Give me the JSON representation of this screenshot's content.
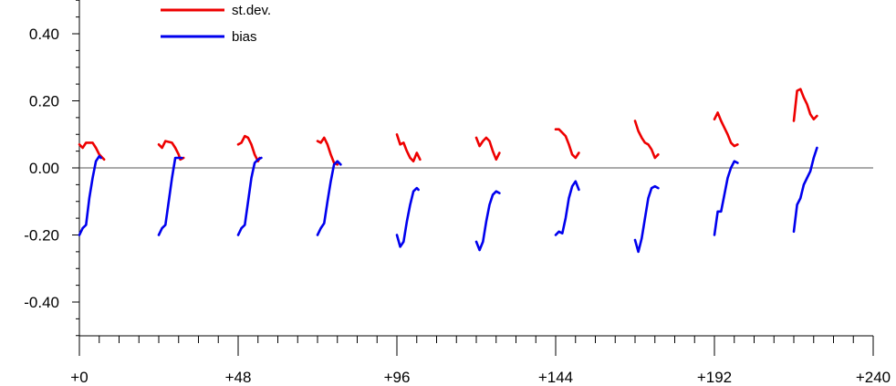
{
  "chart_data": {
    "type": "line",
    "title": "",
    "xlabel": "",
    "ylabel": "",
    "xlim": [
      0,
      240
    ],
    "ylim": [
      -0.5,
      0.5
    ],
    "x_ticks": [
      0,
      48,
      96,
      144,
      192,
      240
    ],
    "x_tick_labels": [
      "+0",
      "+48",
      "+96",
      "+144",
      "+192",
      "+240"
    ],
    "y_ticks": [
      0.4,
      0.2,
      0.0,
      -0.2,
      -0.4
    ],
    "y_tick_labels": [
      "0.40",
      "0.20",
      "0.00",
      "-0.20",
      "-0.40"
    ],
    "zero_line": true,
    "grid": false,
    "legend_position": "top-left",
    "series": [
      {
        "name": "st.dev.",
        "color": "#ee0000",
        "segments": [
          [
            [
              0,
              0.07
            ],
            [
              1,
              0.06
            ],
            [
              2,
              0.075
            ],
            [
              4,
              0.075
            ],
            [
              5,
              0.06
            ],
            [
              6,
              0.04
            ],
            [
              7,
              0.03
            ],
            [
              7.5,
              0.025
            ]
          ],
          [
            [
              24,
              0.07
            ],
            [
              25,
              0.06
            ],
            [
              26,
              0.08
            ],
            [
              28,
              0.075
            ],
            [
              29,
              0.06
            ],
            [
              30,
              0.04
            ],
            [
              30.5,
              0.025
            ],
            [
              31.5,
              0.03
            ]
          ],
          [
            [
              48,
              0.07
            ],
            [
              49,
              0.075
            ],
            [
              50,
              0.095
            ],
            [
              51,
              0.09
            ],
            [
              52,
              0.07
            ],
            [
              53,
              0.04
            ],
            [
              54,
              0.02
            ],
            [
              54.5,
              0.03
            ]
          ],
          [
            [
              72,
              0.08
            ],
            [
              73,
              0.075
            ],
            [
              74,
              0.09
            ],
            [
              75,
              0.07
            ],
            [
              76,
              0.04
            ],
            [
              77,
              0.015
            ],
            [
              78,
              0.01
            ]
          ],
          [
            [
              96,
              0.1
            ],
            [
              97,
              0.07
            ],
            [
              98,
              0.075
            ],
            [
              99,
              0.05
            ],
            [
              100,
              0.03
            ],
            [
              101,
              0.02
            ],
            [
              102,
              0.045
            ],
            [
              103,
              0.025
            ]
          ],
          [
            [
              120,
              0.09
            ],
            [
              121,
              0.065
            ],
            [
              122,
              0.08
            ],
            [
              123,
              0.09
            ],
            [
              124,
              0.08
            ],
            [
              125,
              0.05
            ],
            [
              126,
              0.025
            ],
            [
              127,
              0.045
            ]
          ],
          [
            [
              144,
              0.115
            ],
            [
              145,
              0.115
            ],
            [
              146,
              0.105
            ],
            [
              147,
              0.095
            ],
            [
              148,
              0.07
            ],
            [
              149,
              0.04
            ],
            [
              150,
              0.03
            ],
            [
              151,
              0.045
            ]
          ],
          [
            [
              168,
              0.14
            ],
            [
              169,
              0.11
            ],
            [
              170,
              0.09
            ],
            [
              171,
              0.075
            ],
            [
              172,
              0.07
            ],
            [
              173,
              0.055
            ],
            [
              174,
              0.03
            ],
            [
              175,
              0.04
            ]
          ],
          [
            [
              192,
              0.145
            ],
            [
              193,
              0.165
            ],
            [
              194,
              0.14
            ],
            [
              195,
              0.12
            ],
            [
              196,
              0.1
            ],
            [
              197,
              0.075
            ],
            [
              198,
              0.065
            ],
            [
              199,
              0.07
            ]
          ],
          [
            [
              216,
              0.14
            ],
            [
              217,
              0.23
            ],
            [
              218,
              0.235
            ],
            [
              219,
              0.21
            ],
            [
              220,
              0.19
            ],
            [
              221,
              0.16
            ],
            [
              222,
              0.145
            ],
            [
              223,
              0.155
            ]
          ]
        ]
      },
      {
        "name": "bias",
        "color": "#0000ee",
        "segments": [
          [
            [
              0,
              -0.2
            ],
            [
              1,
              -0.18
            ],
            [
              2,
              -0.17
            ],
            [
              3,
              -0.09
            ],
            [
              4,
              -0.03
            ],
            [
              5,
              0.02
            ],
            [
              6,
              0.035
            ],
            [
              6.5,
              0.03
            ]
          ],
          [
            [
              24,
              -0.2
            ],
            [
              25,
              -0.18
            ],
            [
              26,
              -0.17
            ],
            [
              27,
              -0.1
            ],
            [
              28,
              -0.03
            ],
            [
              29,
              0.03
            ],
            [
              30,
              0.03
            ],
            [
              31,
              0.03
            ]
          ],
          [
            [
              48,
              -0.2
            ],
            [
              49,
              -0.18
            ],
            [
              50,
              -0.17
            ],
            [
              51,
              -0.1
            ],
            [
              52,
              -0.03
            ],
            [
              53,
              0.015
            ],
            [
              54,
              0.025
            ],
            [
              55,
              0.03
            ]
          ],
          [
            [
              72,
              -0.2
            ],
            [
              73,
              -0.18
            ],
            [
              74,
              -0.165
            ],
            [
              75,
              -0.1
            ],
            [
              76,
              -0.04
            ],
            [
              77,
              0.01
            ],
            [
              78,
              0.02
            ],
            [
              79,
              0.01
            ]
          ],
          [
            [
              96,
              -0.2
            ],
            [
              97,
              -0.235
            ],
            [
              98,
              -0.22
            ],
            [
              99,
              -0.16
            ],
            [
              100,
              -0.11
            ],
            [
              101,
              -0.07
            ],
            [
              102,
              -0.06
            ],
            [
              102.5,
              -0.065
            ]
          ],
          [
            [
              120,
              -0.22
            ],
            [
              121,
              -0.245
            ],
            [
              122,
              -0.22
            ],
            [
              123,
              -0.16
            ],
            [
              124,
              -0.11
            ],
            [
              125,
              -0.08
            ],
            [
              126,
              -0.07
            ],
            [
              127,
              -0.075
            ]
          ],
          [
            [
              144,
              -0.2
            ],
            [
              145,
              -0.19
            ],
            [
              146,
              -0.195
            ],
            [
              147,
              -0.15
            ],
            [
              148,
              -0.09
            ],
            [
              149,
              -0.055
            ],
            [
              150,
              -0.04
            ],
            [
              151,
              -0.065
            ]
          ],
          [
            [
              168,
              -0.215
            ],
            [
              169,
              -0.25
            ],
            [
              170,
              -0.21
            ],
            [
              171,
              -0.15
            ],
            [
              172,
              -0.09
            ],
            [
              173,
              -0.06
            ],
            [
              174,
              -0.055
            ],
            [
              175,
              -0.06
            ]
          ],
          [
            [
              192,
              -0.2
            ],
            [
              193,
              -0.13
            ],
            [
              194,
              -0.13
            ],
            [
              195,
              -0.08
            ],
            [
              196,
              -0.03
            ],
            [
              197,
              0.0
            ],
            [
              198,
              0.02
            ],
            [
              199,
              0.015
            ]
          ],
          [
            [
              216,
              -0.19
            ],
            [
              217,
              -0.11
            ],
            [
              218,
              -0.09
            ],
            [
              219,
              -0.05
            ],
            [
              220,
              -0.03
            ],
            [
              221,
              -0.01
            ],
            [
              222,
              0.03
            ],
            [
              223,
              0.06
            ]
          ]
        ]
      }
    ]
  }
}
